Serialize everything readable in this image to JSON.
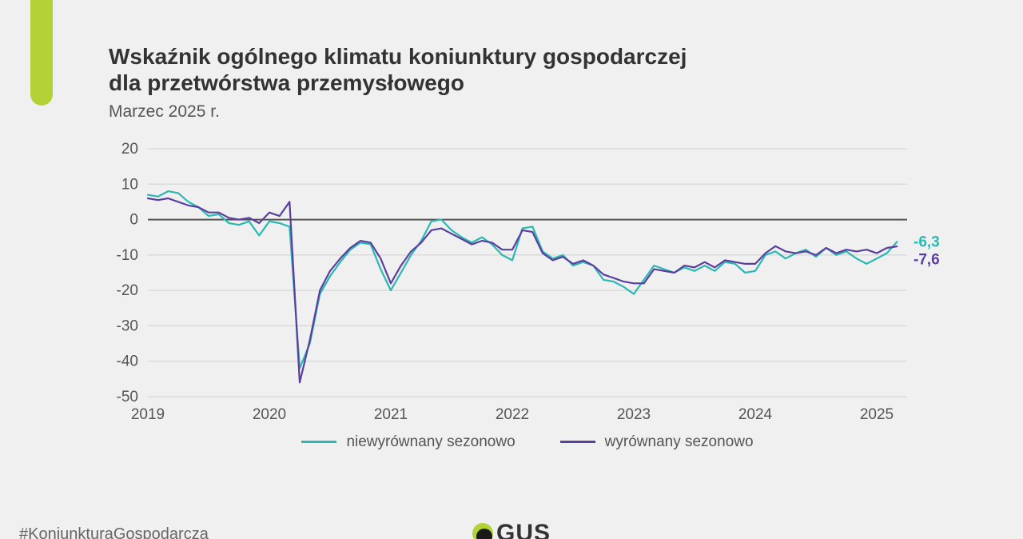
{
  "accent_color": "#b2d235",
  "title_line1": "Wskaźnik ogólnego klimatu koniunktury gospodarczej",
  "title_line2": "dla przetwórstwa przemysłowego",
  "title_fontsize": 28,
  "subtitle": "Marzec 2025 r.",
  "subtitle_fontsize": 21,
  "hashtag": "#KoniunkturaGospodarcza",
  "hashtag_fontsize": 20,
  "logo_text": "GUS",
  "logo_fontsize": 30,
  "chart": {
    "type": "line",
    "background_color": "#f0f0f0",
    "grid_color": "#d0d0d0",
    "zero_line_color": "#555555",
    "axis_font_size": 19,
    "line_width": 2.2,
    "x_start": 2019.0,
    "x_end": 2025.25,
    "x_ticks": [
      2019,
      2020,
      2021,
      2022,
      2023,
      2024,
      2025
    ],
    "ylim": [
      -50,
      20
    ],
    "y_ticks": [
      20,
      10,
      0,
      -10,
      -20,
      -30,
      -40,
      -50
    ],
    "legend_fontsize": 19,
    "end_label_fontsize": 19,
    "series": [
      {
        "key": "nsa",
        "label": "niewyrównany sezonowo",
        "color": "#2bb8b3",
        "end_value_label": "-6,3",
        "end_value": -6.3,
        "data": [
          7.0,
          6.5,
          8.0,
          7.5,
          5.0,
          3.5,
          1.0,
          1.5,
          -1.0,
          -1.5,
          -0.5,
          -4.5,
          -0.5,
          -1.0,
          -2.0,
          -42.0,
          -35.0,
          -21.0,
          -16.0,
          -12.0,
          -8.5,
          -6.5,
          -7.0,
          -14.0,
          -20.0,
          -15.0,
          -10.0,
          -6.0,
          -0.5,
          0.0,
          -3.0,
          -5.0,
          -6.5,
          -5.0,
          -7.0,
          -10.0,
          -11.5,
          -2.5,
          -2.0,
          -9.0,
          -11.0,
          -10.0,
          -13.0,
          -12.0,
          -13.0,
          -17.0,
          -17.5,
          -19.0,
          -21.0,
          -17.0,
          -13.0,
          -14.0,
          -15.0,
          -13.5,
          -14.5,
          -13.0,
          -14.5,
          -12.0,
          -12.5,
          -15.0,
          -14.5,
          -10.0,
          -9.0,
          -11.0,
          -9.5,
          -8.5,
          -10.5,
          -8.0,
          -10.0,
          -9.0,
          -11.0,
          -12.5,
          -11.0,
          -9.5,
          -6.3
        ]
      },
      {
        "key": "sa",
        "label": "wyrównany sezonowo",
        "color": "#5b3f9e",
        "end_value_label": "-7,6",
        "end_value": -7.6,
        "data": [
          6.0,
          5.5,
          6.0,
          5.0,
          4.0,
          3.5,
          2.0,
          2.0,
          0.5,
          0.0,
          0.5,
          -1.0,
          2.0,
          1.0,
          5.0,
          -46.0,
          -34.0,
          -20.0,
          -14.5,
          -11.0,
          -8.0,
          -6.0,
          -6.5,
          -11.0,
          -18.0,
          -13.0,
          -9.0,
          -6.5,
          -3.0,
          -2.5,
          -4.0,
          -5.5,
          -7.0,
          -6.0,
          -6.5,
          -8.5,
          -8.5,
          -3.0,
          -3.5,
          -9.5,
          -11.5,
          -10.5,
          -12.5,
          -11.5,
          -13.0,
          -15.5,
          -16.5,
          -17.5,
          -18.0,
          -18.0,
          -14.0,
          -14.5,
          -15.0,
          -13.0,
          -13.5,
          -12.0,
          -13.5,
          -11.5,
          -12.0,
          -12.5,
          -12.5,
          -9.5,
          -7.5,
          -9.0,
          -9.5,
          -9.0,
          -10.0,
          -8.0,
          -9.5,
          -8.5,
          -9.0,
          -8.5,
          -9.5,
          -8.0,
          -7.6
        ]
      }
    ]
  }
}
